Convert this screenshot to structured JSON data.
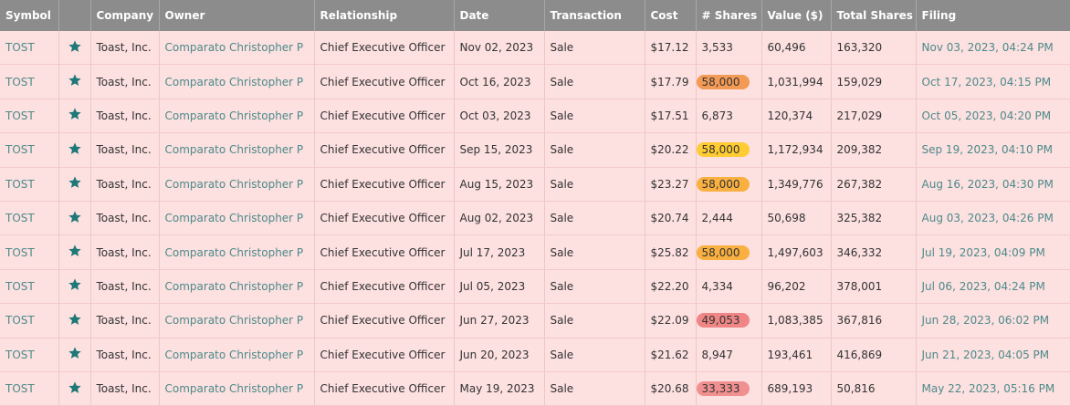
{
  "table": {
    "headers": [
      "Symbol",
      "Company",
      "Owner",
      "Relationship",
      "Date",
      "Transaction",
      "Cost",
      "# Shares",
      "Value ($)",
      "Total Shares",
      "Filing"
    ],
    "rows": [
      [
        "TOST",
        "Toast, Inc.",
        "Comparato Christopher P",
        "Chief Executive Officer",
        "Nov 02, 2023",
        "Sale",
        "$17.12",
        "3,533",
        "60,496",
        "163,320",
        "Nov 03, 2023, 04:24 PM"
      ],
      [
        "TOST",
        "Toast, Inc.",
        "Comparato Christopher P",
        "Chief Executive Officer",
        "Oct 16, 2023",
        "Sale",
        "$17.79",
        "58,000",
        "1,031,994",
        "159,029",
        "Oct 17, 2023, 04:15 PM"
      ],
      [
        "TOST",
        "Toast, Inc.",
        "Comparato Christopher P",
        "Chief Executive Officer",
        "Oct 03, 2023",
        "Sale",
        "$17.51",
        "6,873",
        "120,374",
        "217,029",
        "Oct 05, 2023, 04:20 PM"
      ],
      [
        "TOST",
        "Toast, Inc.",
        "Comparato Christopher P",
        "Chief Executive Officer",
        "Sep 15, 2023",
        "Sale",
        "$20.22",
        "58,000",
        "1,172,934",
        "209,382",
        "Sep 19, 2023, 04:10 PM"
      ],
      [
        "TOST",
        "Toast, Inc.",
        "Comparato Christopher P",
        "Chief Executive Officer",
        "Aug 15, 2023",
        "Sale",
        "$23.27",
        "58,000",
        "1,349,776",
        "267,382",
        "Aug 16, 2023, 04:30 PM"
      ],
      [
        "TOST",
        "Toast, Inc.",
        "Comparato Christopher P",
        "Chief Executive Officer",
        "Aug 02, 2023",
        "Sale",
        "$20.74",
        "2,444",
        "50,698",
        "325,382",
        "Aug 03, 2023, 04:26 PM"
      ],
      [
        "TOST",
        "Toast, Inc.",
        "Comparato Christopher P",
        "Chief Executive Officer",
        "Jul 17, 2023",
        "Sale",
        "$25.82",
        "58,000",
        "1,497,603",
        "346,332",
        "Jul 19, 2023, 04:09 PM"
      ],
      [
        "TOST",
        "Toast, Inc.",
        "Comparato Christopher P",
        "Chief Executive Officer",
        "Jul 05, 2023",
        "Sale",
        "$22.20",
        "4,334",
        "96,202",
        "378,001",
        "Jul 06, 2023, 04:24 PM"
      ],
      [
        "TOST",
        "Toast, Inc.",
        "Comparato Christopher P",
        "Chief Executive Officer",
        "Jun 27, 2023",
        "Sale",
        "$22.09",
        "49,053",
        "1,083,385",
        "367,816",
        "Jun 28, 2023, 06:02 PM"
      ],
      [
        "TOST",
        "Toast, Inc.",
        "Comparato Christopher P",
        "Chief Executive Officer",
        "Jun 20, 2023",
        "Sale",
        "$21.62",
        "8,947",
        "193,461",
        "416,869",
        "Jun 21, 2023, 04:05 PM"
      ],
      [
        "TOST",
        "Toast, Inc.",
        "Comparato Christopher P",
        "Chief Executive Officer",
        "May 19, 2023",
        "Sale",
        "$20.68",
        "33,333",
        "689,193",
        "50,816",
        "May 22, 2023, 05:16 PM"
      ]
    ],
    "shares_highlight": [
      null,
      "#f39a55",
      null,
      "#ffcc33",
      "#f9b040",
      null,
      "#f9b040",
      null,
      "#ef8585",
      null,
      "#f19090"
    ]
  }
}
